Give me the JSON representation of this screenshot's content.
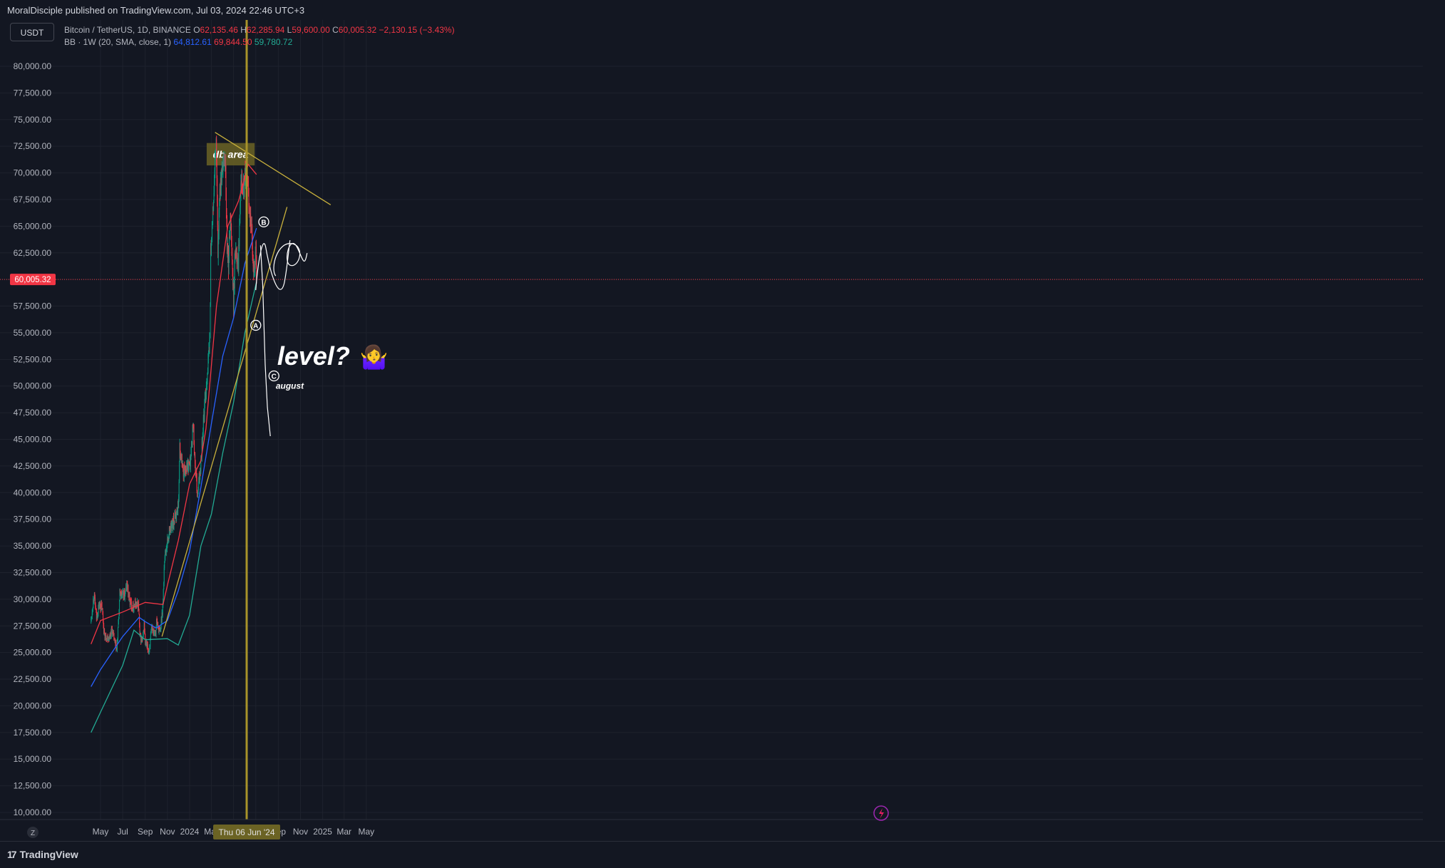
{
  "header": {
    "publisher": "MoralDisciple published on TradingView.com, Jul 03, 2024 22:46 UTC+3",
    "currency_button": "USDT"
  },
  "legend": {
    "symbol": "Bitcoin / TetherUS, 1D, BINANCE",
    "ohlc": [
      {
        "key": "O",
        "value": "62,135.46"
      },
      {
        "key": "H",
        "value": "62,285.94"
      },
      {
        "key": "L",
        "value": "59,600.00"
      },
      {
        "key": "C",
        "value": "60,005.32"
      }
    ],
    "change": "−2,130.15 (−3.43%)",
    "bb_label": "BB · 1W (20, SMA, close, 1)",
    "bb_values": {
      "basis": "64,812.61",
      "upper": "69,844.50",
      "lower": "59,780.72"
    }
  },
  "footer": {
    "brand": "TradingView"
  },
  "colors": {
    "background": "#131722",
    "grid": "#1e222d",
    "axis_text": "#b2b5be",
    "candle_up": "#089981",
    "candle_down": "#f23645",
    "bb_upper": "#f23645",
    "bb_basis": "#2962ff",
    "bb_lower": "#22ab94",
    "trendline": "#c9b13c",
    "zone_fill": "#6b6324",
    "cursor_line": "#a8932a",
    "current_price": "#f23645",
    "drawing": "#ffffff"
  },
  "chart_data": {
    "type": "candlestick",
    "symbol": "BTCUSDT",
    "timeframe": "1D",
    "exchange": "BINANCE",
    "x_range": [
      "2023-04-05",
      "2025-05-10"
    ],
    "ylim": [
      9000,
      82000
    ],
    "yticks": [
      10000,
      12500,
      15000,
      17500,
      20000,
      22500,
      25000,
      27500,
      30000,
      32500,
      35000,
      37500,
      40000,
      42500,
      45000,
      47500,
      50000,
      52500,
      55000,
      57500,
      60000,
      62500,
      65000,
      67500,
      70000,
      72500,
      75000,
      77500,
      80000
    ],
    "ytick_labels": [
      "10,000.00",
      "12,500.00",
      "15,000.00",
      "17,500.00",
      "20,000.00",
      "22,500.00",
      "25,000.00",
      "27,500.00",
      "30,000.00",
      "32,500.00",
      "35,000.00",
      "37,500.00",
      "40,000.00",
      "42,500.00",
      "45,000.00",
      "47,500.00",
      "50,000.00",
      "52,500.00",
      "55,000.00",
      "57,500.00",
      "60,000.00",
      "62,500.00",
      "65,000.00",
      "67,500.00",
      "70,000.00",
      "72,500.00",
      "75,000.00",
      "77,500.00",
      "80,000.00"
    ],
    "xticks": [
      {
        "date": "2023-05-01",
        "label": "May"
      },
      {
        "date": "2023-07-01",
        "label": "Jul"
      },
      {
        "date": "2023-09-01",
        "label": "Sep"
      },
      {
        "date": "2023-11-01",
        "label": "Nov"
      },
      {
        "date": "2024-01-01",
        "label": "2024"
      },
      {
        "date": "2024-03-01",
        "label": "Mar"
      },
      {
        "date": "2024-05-01",
        "label": "May"
      },
      {
        "date": "2024-07-01",
        "label": "Jul"
      },
      {
        "date": "2024-09-01",
        "label": "Sep"
      },
      {
        "date": "2024-11-01",
        "label": "Nov"
      },
      {
        "date": "2025-01-01",
        "label": "2025"
      },
      {
        "date": "2025-03-01",
        "label": "Mar"
      },
      {
        "date": "2025-05-01",
        "label": "May"
      }
    ],
    "price_path": [
      [
        "2023-04-05",
        28000
      ],
      [
        "2023-04-13",
        30500
      ],
      [
        "2023-04-20",
        28200
      ],
      [
        "2023-04-27",
        29500
      ],
      [
        "2023-05-05",
        29200
      ],
      [
        "2023-05-12",
        26500
      ],
      [
        "2023-05-25",
        26400
      ],
      [
        "2023-06-01",
        27200
      ],
      [
        "2023-06-10",
        25800
      ],
      [
        "2023-06-15",
        25200
      ],
      [
        "2023-06-20",
        28300
      ],
      [
        "2023-06-23",
        30500
      ],
      [
        "2023-07-06",
        30300
      ],
      [
        "2023-07-13",
        31400
      ],
      [
        "2023-07-20",
        29800
      ],
      [
        "2023-07-27",
        29300
      ],
      [
        "2023-08-08",
        29500
      ],
      [
        "2023-08-14",
        29300
      ],
      [
        "2023-08-17",
        26500
      ],
      [
        "2023-08-25",
        26000
      ],
      [
        "2023-08-29",
        27700
      ],
      [
        "2023-09-01",
        25900
      ],
      [
        "2023-09-11",
        25100
      ],
      [
        "2023-09-19",
        27200
      ],
      [
        "2023-09-30",
        27000
      ],
      [
        "2023-10-02",
        27900
      ],
      [
        "2023-10-12",
        26800
      ],
      [
        "2023-10-20",
        29700
      ],
      [
        "2023-10-24",
        33900
      ],
      [
        "2023-11-01",
        35400
      ],
      [
        "2023-11-09",
        36700
      ],
      [
        "2023-11-20",
        37400
      ],
      [
        "2023-12-01",
        38700
      ],
      [
        "2023-12-05",
        44100
      ],
      [
        "2023-12-15",
        42000
      ],
      [
        "2023-12-26",
        42500
      ],
      [
        "2024-01-03",
        42800
      ],
      [
        "2024-01-11",
        46500
      ],
      [
        "2024-01-16",
        42600
      ],
      [
        "2024-01-23",
        39500
      ],
      [
        "2024-02-01",
        43000
      ],
      [
        "2024-02-09",
        47100
      ],
      [
        "2024-02-20",
        51800
      ],
      [
        "2024-02-26",
        54500
      ],
      [
        "2024-02-28",
        62500
      ],
      [
        "2024-03-05",
        66000
      ],
      [
        "2024-03-14",
        73000
      ],
      [
        "2024-03-19",
        62500
      ],
      [
        "2024-03-25",
        69000
      ],
      [
        "2024-04-01",
        70000
      ],
      [
        "2024-04-08",
        71500
      ],
      [
        "2024-04-13",
        63000
      ],
      [
        "2024-04-17",
        61200
      ],
      [
        "2024-04-22",
        66500
      ],
      [
        "2024-05-01",
        57800
      ],
      [
        "2024-05-06",
        63200
      ],
      [
        "2024-05-14",
        61500
      ],
      [
        "2024-05-21",
        70100
      ],
      [
        "2024-05-28",
        68400
      ],
      [
        "2024-06-06",
        71000
      ],
      [
        "2024-06-12",
        67200
      ],
      [
        "2024-06-19",
        65000
      ],
      [
        "2024-06-24",
        60500
      ],
      [
        "2024-06-28",
        61600
      ],
      [
        "2024-07-01",
        62900
      ],
      [
        "2024-07-03",
        60005
      ]
    ],
    "bollinger_bands_1W": {
      "upper": [
        [
          "2023-04-05",
          25800
        ],
        [
          "2023-05-01",
          28000
        ],
        [
          "2023-07-01",
          28800
        ],
        [
          "2023-09-01",
          29700
        ],
        [
          "2023-10-20",
          29500
        ],
        [
          "2023-11-01",
          31300
        ],
        [
          "2023-12-01",
          35500
        ],
        [
          "2024-01-01",
          40800
        ],
        [
          "2024-02-01",
          43000
        ],
        [
          "2024-02-15",
          46000
        ],
        [
          "2024-03-15",
          57500
        ],
        [
          "2024-04-15",
          65000
        ],
        [
          "2024-05-15",
          67400
        ],
        [
          "2024-06-10",
          70800
        ],
        [
          "2024-07-03",
          69850
        ]
      ],
      "basis": [
        [
          "2023-04-05",
          21800
        ],
        [
          "2023-05-01",
          23400
        ],
        [
          "2023-07-01",
          26500
        ],
        [
          "2023-08-15",
          28300
        ],
        [
          "2023-09-01",
          27900
        ],
        [
          "2023-10-01",
          27300
        ],
        [
          "2023-11-01",
          28000
        ],
        [
          "2023-12-01",
          30800
        ],
        [
          "2024-01-01",
          34500
        ],
        [
          "2024-02-01",
          40500
        ],
        [
          "2024-03-01",
          46500
        ],
        [
          "2024-04-01",
          52800
        ],
        [
          "2024-05-01",
          56400
        ],
        [
          "2024-06-01",
          61500
        ],
        [
          "2024-07-03",
          64810
        ]
      ],
      "lower": [
        [
          "2023-04-05",
          17500
        ],
        [
          "2023-05-01",
          19400
        ],
        [
          "2023-07-01",
          23800
        ],
        [
          "2023-08-01",
          27100
        ],
        [
          "2023-09-01",
          26200
        ],
        [
          "2023-11-01",
          26300
        ],
        [
          "2023-12-01",
          25700
        ],
        [
          "2024-01-01",
          28500
        ],
        [
          "2024-02-01",
          35000
        ],
        [
          "2024-03-01",
          38000
        ],
        [
          "2024-04-01",
          43700
        ],
        [
          "2024-05-01",
          48500
        ],
        [
          "2024-06-01",
          55000
        ],
        [
          "2024-07-03",
          59780
        ]
      ]
    },
    "current_price": {
      "value": 60005.32,
      "label": "60,005.32"
    },
    "crosshair": {
      "date": "2024-06-06",
      "label": "Thu 06 Jun '24"
    },
    "annotations": {
      "zone": {
        "label": "db area",
        "from": "2024-02-17",
        "to": "2024-06-28",
        "top": 72800,
        "bottom": 70700
      },
      "resistance_line": {
        "from": [
          "2024-03-11",
          73800
        ],
        "to": [
          "2025-01-23",
          67000
        ]
      },
      "support_line": {
        "from": [
          "2023-10-17",
          26500
        ],
        "to": [
          "2024-09-25",
          66800
        ]
      },
      "projection_path": [
        [
          "2024-07-14",
          63200
        ],
        [
          "2024-07-20",
          59500
        ],
        [
          "2024-07-27",
          52000
        ],
        [
          "2024-08-02",
          48000
        ],
        [
          "2024-08-10",
          45300
        ]
      ],
      "labels": [
        {
          "text": "A",
          "date": "2024-07-01",
          "price": 55700
        },
        {
          "text": "B",
          "date": "2024-07-23",
          "price": 65400
        },
        {
          "text": "C",
          "date": "2024-08-20",
          "price": 50950
        }
      ],
      "question_text": "level?",
      "question_emoji": "🤷‍♀️",
      "month_note": "august"
    }
  }
}
